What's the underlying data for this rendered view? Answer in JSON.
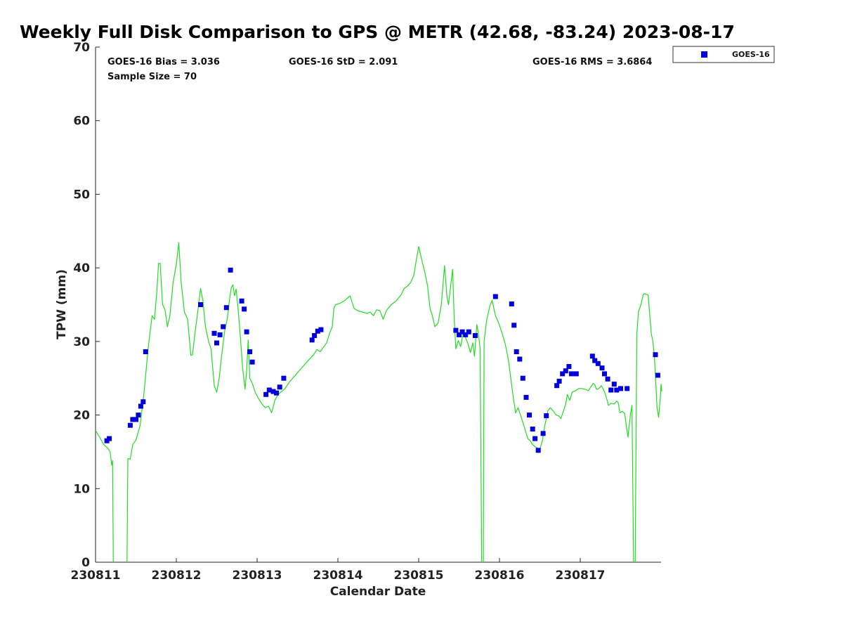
{
  "colors": {
    "gps_line": "#22dd22",
    "goes_marker": "#0000dd",
    "axis": "#262626"
  },
  "chart_data": {
    "type": "scatter",
    "title": "Weekly Full Disk Comparison to GPS @ METR (42.68, -83.24) 2023-08-17",
    "xlabel": "Calendar Date",
    "ylabel": "TPW (mm)",
    "xlim": [
      0,
      7
    ],
    "ylim": [
      0,
      70
    ],
    "x_ticks": [
      {
        "value": 0,
        "label": "230811"
      },
      {
        "value": 1,
        "label": "230812"
      },
      {
        "value": 2,
        "label": "230813"
      },
      {
        "value": 3,
        "label": "230814"
      },
      {
        "value": 4,
        "label": "230815"
      },
      {
        "value": 5,
        "label": "230816"
      },
      {
        "value": 6,
        "label": "230817"
      }
    ],
    "y_ticks": [
      0,
      10,
      20,
      30,
      40,
      50,
      60,
      70
    ],
    "stats": {
      "bias": "GOES-16 Bias = 3.036",
      "sample": "Sample Size = 70",
      "std": "GOES-16 StD = 2.091",
      "rms": "GOES-16 RMS = 3.6864"
    },
    "legend": {
      "position": "outside-top-right",
      "entries": [
        "GOES-16"
      ]
    },
    "series": [
      {
        "name": "GOES-16",
        "kind": "markers",
        "points": [
          [
            0.14,
            16.5
          ],
          [
            0.17,
            16.8
          ],
          [
            0.43,
            18.6
          ],
          [
            0.46,
            19.4
          ],
          [
            0.5,
            19.4
          ],
          [
            0.53,
            20.0
          ],
          [
            0.56,
            21.2
          ],
          [
            0.59,
            21.8
          ],
          [
            0.62,
            28.6
          ],
          [
            1.3,
            35.0
          ],
          [
            1.47,
            31.1
          ],
          [
            1.5,
            29.8
          ],
          [
            1.54,
            30.9
          ],
          [
            1.58,
            32.0
          ],
          [
            1.62,
            34.6
          ],
          [
            1.67,
            39.7
          ],
          [
            1.81,
            35.5
          ],
          [
            1.84,
            34.4
          ],
          [
            1.87,
            31.3
          ],
          [
            1.91,
            28.6
          ],
          [
            1.94,
            27.2
          ],
          [
            2.11,
            22.8
          ],
          [
            2.15,
            23.4
          ],
          [
            2.2,
            23.2
          ],
          [
            2.24,
            23.0
          ],
          [
            2.28,
            23.8
          ],
          [
            2.33,
            25.0
          ],
          [
            2.68,
            30.2
          ],
          [
            2.71,
            30.8
          ],
          [
            2.75,
            31.4
          ],
          [
            2.79,
            31.6
          ],
          [
            4.46,
            31.5
          ],
          [
            4.5,
            30.9
          ],
          [
            4.54,
            31.3
          ],
          [
            4.58,
            30.9
          ],
          [
            4.62,
            31.3
          ],
          [
            4.7,
            30.8
          ],
          [
            4.95,
            36.1
          ],
          [
            5.15,
            35.1
          ],
          [
            5.18,
            32.2
          ],
          [
            5.21,
            28.6
          ],
          [
            5.25,
            27.6
          ],
          [
            5.29,
            25.0
          ],
          [
            5.33,
            22.4
          ],
          [
            5.37,
            20.0
          ],
          [
            5.41,
            18.1
          ],
          [
            5.44,
            16.8
          ],
          [
            5.48,
            15.2
          ],
          [
            5.54,
            17.5
          ],
          [
            5.58,
            19.9
          ],
          [
            5.71,
            24.0
          ],
          [
            5.74,
            24.6
          ],
          [
            5.78,
            25.6
          ],
          [
            5.82,
            26.0
          ],
          [
            5.86,
            26.6
          ],
          [
            5.89,
            25.6
          ],
          [
            5.95,
            25.6
          ],
          [
            6.15,
            28.0
          ],
          [
            6.18,
            27.4
          ],
          [
            6.22,
            27.0
          ],
          [
            6.27,
            26.4
          ],
          [
            6.3,
            25.6
          ],
          [
            6.34,
            24.9
          ],
          [
            6.38,
            23.4
          ],
          [
            6.42,
            24.2
          ],
          [
            6.45,
            23.4
          ],
          [
            6.5,
            23.6
          ],
          [
            6.58,
            23.6
          ],
          [
            6.93,
            28.2
          ],
          [
            6.96,
            25.4
          ]
        ]
      },
      {
        "name": "GPS",
        "kind": "line",
        "segments": [
          [
            [
              0.0,
              17.9
            ],
            [
              0.05,
              17.0
            ],
            [
              0.1,
              16.0
            ],
            [
              0.15,
              15.5
            ],
            [
              0.18,
              15.0
            ],
            [
              0.2,
              13.2
            ],
            [
              0.21,
              13.8
            ],
            [
              0.22,
              0.0
            ]
          ],
          [
            [
              0.39,
              0.0
            ],
            [
              0.4,
              14.1
            ],
            [
              0.43,
              14.0
            ],
            [
              0.46,
              16.0
            ],
            [
              0.5,
              16.6
            ],
            [
              0.55,
              18.5
            ],
            [
              0.6,
              23.0
            ],
            [
              0.65,
              29.0
            ],
            [
              0.7,
              33.5
            ],
            [
              0.73,
              33.0
            ],
            [
              0.76,
              37.0
            ],
            [
              0.78,
              40.6
            ],
            [
              0.8,
              40.6
            ],
            [
              0.83,
              35.0
            ],
            [
              0.86,
              34.3
            ],
            [
              0.89,
              32.0
            ],
            [
              0.92,
              33.5
            ],
            [
              0.96,
              38.0
            ],
            [
              1.0,
              40.5
            ],
            [
              1.03,
              43.4
            ],
            [
              1.06,
              38.0
            ],
            [
              1.1,
              34.0
            ],
            [
              1.14,
              33.0
            ],
            [
              1.18,
              28.1
            ],
            [
              1.2,
              28.2
            ],
            [
              1.23,
              31.0
            ],
            [
              1.27,
              34.5
            ],
            [
              1.3,
              37.2
            ],
            [
              1.33,
              35.5
            ],
            [
              1.36,
              32.0
            ],
            [
              1.4,
              30.0
            ],
            [
              1.43,
              29.0
            ],
            [
              1.47,
              24.0
            ],
            [
              1.5,
              23.1
            ],
            [
              1.53,
              25.0
            ],
            [
              1.56,
              28.0
            ],
            [
              1.6,
              31.5
            ],
            [
              1.63,
              33.0
            ],
            [
              1.66,
              35.8
            ],
            [
              1.68,
              37.3
            ],
            [
              1.7,
              37.7
            ],
            [
              1.72,
              36.2
            ],
            [
              1.74,
              37.1
            ],
            [
              1.76,
              35.0
            ],
            [
              1.79,
              31.0
            ],
            [
              1.82,
              26.5
            ],
            [
              1.85,
              23.5
            ],
            [
              1.87,
              26.0
            ],
            [
              1.89,
              30.2
            ],
            [
              1.91,
              25.0
            ],
            [
              1.94,
              24.3
            ],
            [
              1.98,
              23.0
            ],
            [
              2.02,
              22.2
            ],
            [
              2.06,
              21.5
            ],
            [
              2.1,
              21.0
            ],
            [
              2.14,
              21.2
            ],
            [
              2.18,
              20.3
            ],
            [
              2.22,
              22.0
            ],
            [
              2.26,
              22.8
            ],
            [
              2.3,
              23.2
            ],
            [
              2.34,
              23.5
            ],
            [
              2.4,
              24.5
            ],
            [
              2.48,
              25.5
            ],
            [
              2.56,
              26.5
            ],
            [
              2.64,
              27.5
            ],
            [
              2.7,
              28.2
            ],
            [
              2.74,
              28.9
            ],
            [
              2.78,
              28.6
            ],
            [
              2.82,
              29.2
            ],
            [
              2.86,
              29.8
            ],
            [
              2.9,
              31.2
            ],
            [
              2.93,
              32.0
            ],
            [
              2.95,
              34.5
            ],
            [
              2.97,
              35.0
            ],
            [
              3.03,
              35.2
            ],
            [
              3.09,
              35.6
            ],
            [
              3.13,
              36.0
            ],
            [
              3.15,
              36.2
            ],
            [
              3.17,
              35.5
            ],
            [
              3.2,
              34.5
            ],
            [
              3.24,
              34.2
            ],
            [
              3.3,
              34.0
            ],
            [
              3.36,
              33.8
            ],
            [
              3.4,
              34.0
            ],
            [
              3.44,
              33.5
            ],
            [
              3.48,
              34.3
            ],
            [
              3.52,
              34.2
            ],
            [
              3.56,
              33.0
            ],
            [
              3.6,
              34.2
            ],
            [
              3.66,
              35.0
            ],
            [
              3.72,
              35.5
            ],
            [
              3.78,
              36.3
            ],
            [
              3.82,
              37.2
            ],
            [
              3.86,
              37.5
            ],
            [
              3.9,
              38.0
            ],
            [
              3.94,
              39.0
            ],
            [
              3.97,
              41.0
            ],
            [
              4.0,
              42.9
            ],
            [
              4.04,
              41.0
            ],
            [
              4.08,
              39.2
            ],
            [
              4.11,
              37.5
            ],
            [
              4.14,
              34.5
            ],
            [
              4.17,
              33.5
            ],
            [
              4.2,
              32.0
            ],
            [
              4.24,
              32.5
            ],
            [
              4.28,
              35.0
            ],
            [
              4.32,
              40.3
            ],
            [
              4.35,
              36.0
            ],
            [
              4.37,
              35.0
            ],
            [
              4.4,
              38.0
            ],
            [
              4.42,
              39.8
            ],
            [
              4.44,
              33.0
            ],
            [
              4.46,
              29.0
            ],
            [
              4.49,
              30.1
            ],
            [
              4.52,
              29.3
            ],
            [
              4.55,
              31.2
            ],
            [
              4.58,
              30.5
            ],
            [
              4.61,
              29.7
            ],
            [
              4.64,
              28.5
            ],
            [
              4.67,
              29.8
            ],
            [
              4.69,
              28.0
            ],
            [
              4.72,
              32.3
            ],
            [
              4.74,
              31.0
            ],
            [
              4.76,
              29.0
            ],
            [
              4.78,
              0.0
            ]
          ],
          [
            [
              4.8,
              0.0
            ],
            [
              4.81,
              30.0
            ],
            [
              4.84,
              32.8
            ],
            [
              4.88,
              34.8
            ],
            [
              4.91,
              35.6
            ],
            [
              4.95,
              33.5
            ],
            [
              4.99,
              32.5
            ],
            [
              5.03,
              31.2
            ],
            [
              5.07,
              29.7
            ],
            [
              5.11,
              27.5
            ],
            [
              5.14,
              25.0
            ],
            [
              5.17,
              22.5
            ],
            [
              5.2,
              20.3
            ],
            [
              5.23,
              21.0
            ],
            [
              5.26,
              20.0
            ],
            [
              5.29,
              19.0
            ],
            [
              5.32,
              17.9
            ],
            [
              5.35,
              16.8
            ],
            [
              5.38,
              16.5
            ],
            [
              5.41,
              16.0
            ],
            [
              5.44,
              15.7
            ],
            [
              5.47,
              15.5
            ],
            [
              5.5,
              15.3
            ],
            [
              5.53,
              16.5
            ],
            [
              5.56,
              18.5
            ],
            [
              5.6,
              20.6
            ],
            [
              5.63,
              21.0
            ],
            [
              5.67,
              20.5
            ],
            [
              5.7,
              20.0
            ],
            [
              5.73,
              19.9
            ],
            [
              5.76,
              19.5
            ],
            [
              5.79,
              20.5
            ],
            [
              5.82,
              21.5
            ],
            [
              5.84,
              22.8
            ],
            [
              5.87,
              22.0
            ],
            [
              5.9,
              23.1
            ],
            [
              5.94,
              23.3
            ],
            [
              5.98,
              23.6
            ],
            [
              6.02,
              23.6
            ],
            [
              6.06,
              23.5
            ],
            [
              6.1,
              23.3
            ],
            [
              6.13,
              23.8
            ],
            [
              6.16,
              24.3
            ],
            [
              6.18,
              24.1
            ],
            [
              6.2,
              23.5
            ],
            [
              6.23,
              23.6
            ],
            [
              6.26,
              24.0
            ],
            [
              6.29,
              23.4
            ],
            [
              6.32,
              22.5
            ],
            [
              6.35,
              21.3
            ],
            [
              6.38,
              21.6
            ],
            [
              6.42,
              21.5
            ],
            [
              6.45,
              21.9
            ],
            [
              6.47,
              21.7
            ],
            [
              6.49,
              20.3
            ],
            [
              6.52,
              20.5
            ],
            [
              6.55,
              20.2
            ],
            [
              6.57,
              18.5
            ],
            [
              6.59,
              17.0
            ],
            [
              6.62,
              20.0
            ],
            [
              6.64,
              21.3
            ],
            [
              6.66,
              0.0
            ]
          ],
          [
            [
              6.68,
              0.0
            ],
            [
              6.7,
              31.0
            ],
            [
              6.72,
              34.0
            ],
            [
              6.75,
              35.0
            ],
            [
              6.78,
              36.4
            ],
            [
              6.8,
              36.5
            ],
            [
              6.84,
              36.3
            ],
            [
              6.88,
              31.0
            ],
            [
              6.9,
              30.0
            ],
            [
              6.92,
              27.5
            ],
            [
              6.95,
              21.0
            ],
            [
              6.97,
              19.7
            ],
            [
              6.99,
              22.3
            ],
            [
              7.0,
              24.2
            ],
            [
              7.01,
              23.2
            ]
          ]
        ]
      }
    ]
  }
}
